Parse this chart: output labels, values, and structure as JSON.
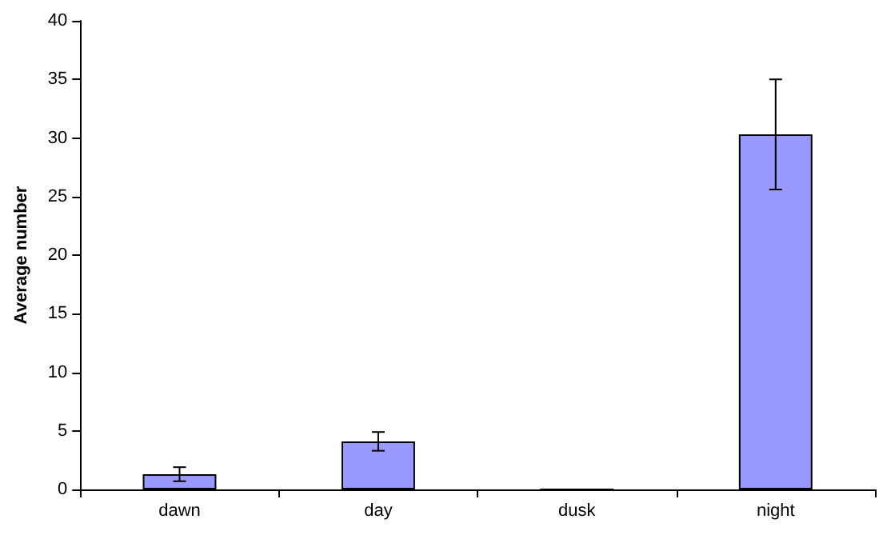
{
  "chart_data": {
    "type": "bar",
    "ylabel": "Average number",
    "categories": [
      "dawn",
      "day",
      "dusk",
      "night"
    ],
    "series": [
      {
        "color": "#9999ff",
        "values": [
          1.3,
          4.1,
          0,
          30.3
        ],
        "errors": [
          0.6,
          0.8,
          null,
          4.7
        ]
      }
    ],
    "ylim": [
      0,
      40
    ],
    "yticks": [
      0,
      5,
      10,
      15,
      20,
      25,
      30,
      35,
      40
    ],
    "grid": false
  }
}
